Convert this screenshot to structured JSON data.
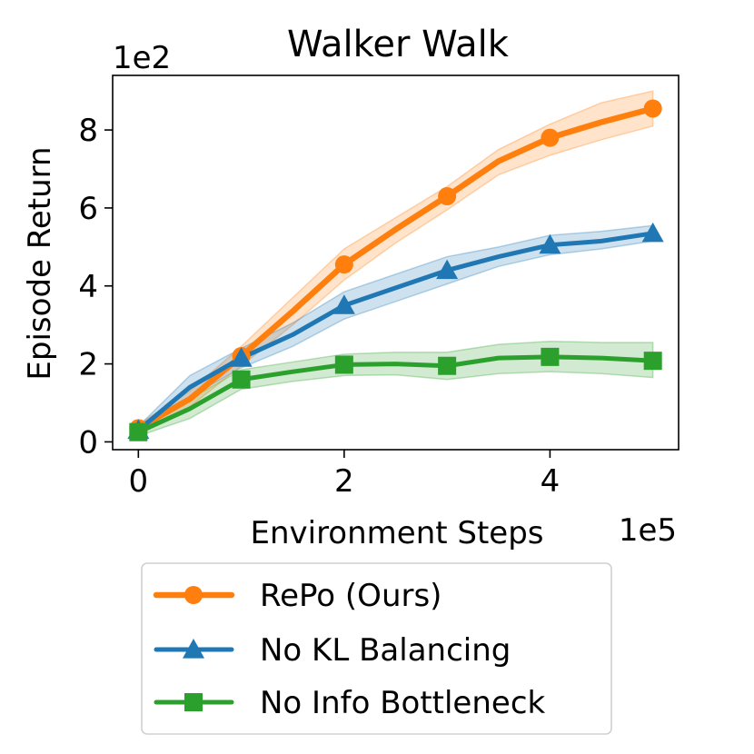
{
  "chart_data": {
    "type": "line",
    "title": "Walker Walk",
    "xlabel": "Environment Steps",
    "ylabel": "Episode Return",
    "x_offset_label": "1e5",
    "y_offset_label": "1e2",
    "xlim": [
      -0.25,
      5.25
    ],
    "ylim": [
      -0.2,
      9.4
    ],
    "xticks": [
      0,
      2,
      4
    ],
    "yticks": [
      0,
      2,
      4,
      6,
      8
    ],
    "grid": false,
    "legend_position": "bottom-center",
    "x": [
      0,
      0.5,
      1,
      1.5,
      2,
      2.5,
      3,
      3.5,
      4,
      4.5,
      5
    ],
    "series": [
      {
        "name": "RePo (Ours)",
        "color": "#ff7f0e",
        "marker": "circle",
        "values": [
          0.35,
          1.1,
          2.2,
          3.35,
          4.55,
          5.45,
          6.3,
          7.2,
          7.8,
          8.2,
          8.55
        ],
        "lower": [
          0.25,
          0.9,
          1.95,
          3.0,
          4.15,
          5.1,
          5.95,
          6.85,
          7.35,
          7.75,
          8.1
        ],
        "upper": [
          0.45,
          1.3,
          2.45,
          3.7,
          4.95,
          5.75,
          6.55,
          7.5,
          8.15,
          8.7,
          9.0
        ]
      },
      {
        "name": "No KL Balancing",
        "color": "#1f77b4",
        "marker": "triangle",
        "values": [
          0.3,
          1.4,
          2.15,
          2.75,
          3.5,
          3.95,
          4.4,
          4.75,
          5.05,
          5.15,
          5.35
        ],
        "lower": [
          0.2,
          1.15,
          1.9,
          2.45,
          3.15,
          3.6,
          4.05,
          4.5,
          4.8,
          4.95,
          5.15
        ],
        "upper": [
          0.4,
          1.7,
          2.4,
          3.05,
          3.85,
          4.3,
          4.75,
          5.0,
          5.3,
          5.4,
          5.55
        ]
      },
      {
        "name": "No Info Bottleneck",
        "color": "#2ca02c",
        "marker": "square",
        "values": [
          0.25,
          0.85,
          1.6,
          1.8,
          1.98,
          2.0,
          1.95,
          2.15,
          2.18,
          2.15,
          2.08
        ],
        "lower": [
          0.15,
          0.6,
          1.35,
          1.55,
          1.7,
          1.72,
          1.6,
          1.75,
          1.8,
          1.75,
          1.65
        ],
        "upper": [
          0.35,
          1.1,
          1.85,
          2.05,
          2.25,
          2.3,
          2.3,
          2.5,
          2.58,
          2.55,
          2.55
        ]
      }
    ],
    "markers_at": [
      0,
      1,
      2,
      3,
      4,
      5
    ]
  }
}
